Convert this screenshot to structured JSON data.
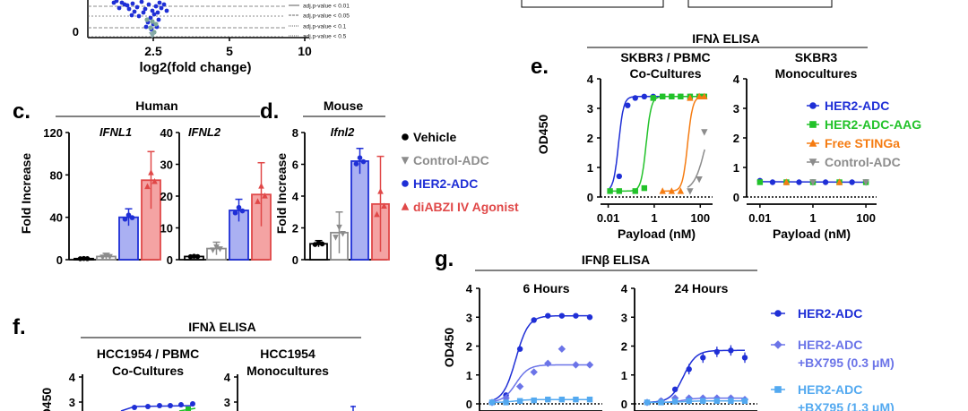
{
  "colors": {
    "blue": "#1f2fd6",
    "green": "#22c22a",
    "orange": "#f57c12",
    "gray": "#8c8c8c",
    "red": "#e04848",
    "black": "#000000",
    "midblue": "#6b74e8",
    "lightblue": "#53a9f0",
    "lightbar_red": "#f4a3a3",
    "lightbar_blue": "#aab0f2"
  },
  "volcano": {
    "xlabel": "log2(fold change)",
    "xticks": [
      "2.5",
      "5",
      "10"
    ],
    "ytick": "0",
    "legend": [
      "adj.p-value < 0.01",
      "adj.p-value < 0.05",
      "adj.p-value < 0.1",
      "adj.p-value < 0.5"
    ]
  },
  "panels": {
    "c": "c.",
    "d": "d.",
    "e": "e.",
    "f": "f.",
    "g": "g."
  },
  "chart_data": [
    {
      "id": "c-human",
      "type": "bar",
      "group_title": "Human",
      "ylabel": "Fold Increase",
      "subplots": [
        {
          "title": "IFNL1",
          "ylim": [
            0,
            120
          ],
          "yticks": [
            "0",
            "40",
            "80",
            "120"
          ],
          "categories": [
            "Vehicle",
            "Control-ADC",
            "HER2-ADC",
            "diABZI IV Agonist"
          ],
          "values": [
            1,
            3,
            40,
            75
          ],
          "errors": [
            0.5,
            3,
            8,
            27
          ]
        },
        {
          "title": "IFNL2",
          "ylim": [
            0,
            40
          ],
          "yticks": [
            "0",
            "10",
            "20",
            "30",
            "40"
          ],
          "categories": [
            "Vehicle",
            "Control-ADC",
            "HER2-ADC",
            "diABZI IV Agonist"
          ],
          "values": [
            1,
            3.5,
            15.5,
            20.5
          ],
          "errors": [
            0.3,
            2,
            3.5,
            10
          ]
        }
      ]
    },
    {
      "id": "d-mouse",
      "type": "bar",
      "group_title": "Mouse",
      "ylabel": "Fold Increase",
      "subplots": [
        {
          "title": "Ifnl2",
          "ylim": [
            0,
            8
          ],
          "yticks": [
            "0",
            "2",
            "4",
            "6",
            "8"
          ],
          "categories": [
            "Vehicle",
            "Control-ADC",
            "HER2-ADC",
            "diABZI IV Agonist"
          ],
          "values": [
            1,
            1.7,
            6.2,
            3.5
          ],
          "errors": [
            0.2,
            1.3,
            0.8,
            3
          ]
        }
      ],
      "legend": [
        {
          "label": "Vehicle",
          "marker": "circle",
          "color": "#000000"
        },
        {
          "label": "Control-ADC",
          "marker": "triangle-down",
          "color": "#8c8c8c"
        },
        {
          "label": "HER2-ADC",
          "marker": "circle",
          "color": "#1f2fd6"
        },
        {
          "label": "diABZI IV Agonist",
          "marker": "triangle-up",
          "color": "#e04848"
        }
      ]
    },
    {
      "id": "e-ifnl-elisa",
      "type": "line",
      "group_title": "IFNλ ELISA",
      "ylabel": "OD450",
      "xlabel": "Payload (nM)",
      "xscale": "log",
      "xticks": [
        "0.01",
        "1",
        "100"
      ],
      "ylim": [
        0,
        4
      ],
      "yticks": [
        "0",
        "1",
        "2",
        "3",
        "4"
      ],
      "subplots": [
        {
          "title": [
            "SKBR3 / PBMC",
            "Co-Cultures"
          ],
          "series": [
            {
              "name": "HER2-ADC",
              "x": [
                0.012,
                0.03,
                0.07,
                0.15,
                0.37,
                0.9,
                2.3,
                5.7,
                14,
                36,
                90,
                150
              ],
              "y": [
                0.2,
                0.7,
                3.1,
                3.35,
                3.4,
                3.4,
                3.4,
                3.4,
                3.4,
                3.4,
                3.4,
                3.4
              ]
            },
            {
              "name": "HER2-ADC-AAG",
              "x": [
                0.012,
                0.03,
                0.15,
                0.37,
                0.9,
                2.3,
                5.7,
                14,
                36,
                90,
                150
              ],
              "y": [
                0.2,
                0.2,
                0.2,
                0.3,
                3.35,
                3.4,
                3.4,
                3.4,
                3.4,
                3.4,
                3.4
              ]
            },
            {
              "name": "Free STINGa",
              "x": [
                2.3,
                5.7,
                14,
                36,
                90,
                150
              ],
              "y": [
                0.2,
                0.2,
                0.2,
                3.35,
                3.4,
                3.4
              ]
            },
            {
              "name": "Control-ADC",
              "x": [
                36,
                90,
                150
              ],
              "y": [
                0.2,
                0.6,
                2.2
              ]
            }
          ]
        },
        {
          "title": [
            "SKBR3",
            "Monocultures"
          ],
          "series": [
            {
              "name": "HER2-ADC",
              "x": [
                0.01,
                0.03,
                0.1,
                0.3,
                1,
                3,
                10,
                30,
                100
              ],
              "y": [
                0.55,
                0.5,
                0.5,
                0.5,
                0.5,
                0.5,
                0.5,
                0.5,
                0.5
              ]
            },
            {
              "name": "HER2-ADC-AAG",
              "x": [
                0.01,
                0.1,
                1,
                10,
                100
              ],
              "y": [
                0.5,
                0.5,
                0.5,
                0.5,
                0.5
              ]
            },
            {
              "name": "Free STINGa",
              "x": [
                0.1,
                10
              ],
              "y": [
                0.5,
                0.5
              ]
            },
            {
              "name": "Control-ADC",
              "x": [
                1,
                100
              ],
              "y": [
                0.5,
                0.5
              ]
            }
          ]
        }
      ],
      "legend": [
        {
          "label": "HER2-ADC",
          "marker": "circle",
          "color": "#1f2fd6"
        },
        {
          "label": "HER2-ADC-AAG",
          "marker": "square",
          "color": "#22c22a"
        },
        {
          "label": "Free STINGa",
          "marker": "triangle-up",
          "color": "#f57c12"
        },
        {
          "label": "Control-ADC",
          "marker": "triangle-down",
          "color": "#8c8c8c"
        }
      ]
    },
    {
      "id": "f-hcc1954",
      "type": "line",
      "group_title": "IFNλ ELISA",
      "ylabel": "OD450",
      "ylim": [
        0,
        4
      ],
      "yticks": [
        "3",
        "4"
      ],
      "subplots": [
        {
          "title": [
            "HCC1954 / PBMC",
            "Co-Cultures"
          ]
        },
        {
          "title": [
            "HCC1954",
            "Monocultures"
          ]
        }
      ]
    },
    {
      "id": "g-ifnb-elisa",
      "type": "line",
      "group_title": "IFNβ ELISA",
      "ylabel": "OD450",
      "ylim": [
        0,
        4
      ],
      "yticks": [
        "0",
        "1",
        "2",
        "3",
        "4"
      ],
      "subplots": [
        {
          "title": "6 Hours",
          "series": [
            {
              "name": "HER2-ADC",
              "x": [
                1,
                2,
                3,
                4,
                5,
                6,
                7,
                8
              ],
              "y": [
                0.05,
                0.3,
                1.9,
                2.9,
                3.05,
                3.05,
                3.05,
                3.0
              ]
            },
            {
              "name": "HER2-ADC +BX795 (0.3 μM)",
              "x": [
                1,
                2,
                3,
                4,
                5,
                6,
                7,
                8
              ],
              "y": [
                0.05,
                0.2,
                0.6,
                1.1,
                1.4,
                1.9,
                1.35,
                1.35
              ]
            },
            {
              "name": "HER2-ADC +BX795 (1.3 μM)",
              "x": [
                1,
                2,
                3,
                4,
                5,
                6,
                7,
                8
              ],
              "y": [
                0.05,
                0.05,
                0.1,
                0.12,
                0.15,
                0.15,
                0.15,
                0.15
              ]
            }
          ]
        },
        {
          "title": "24 Hours",
          "series": [
            {
              "name": "HER2-ADC",
              "x": [
                1,
                2,
                3,
                4,
                5,
                6,
                7,
                8
              ],
              "y": [
                0.05,
                0.1,
                0.5,
                1.2,
                1.6,
                1.8,
                1.85,
                1.6
              ]
            },
            {
              "name": "HER2-ADC +BX795 (0.3 μM)",
              "x": [
                1,
                2,
                3,
                4,
                5,
                6,
                7,
                8
              ],
              "y": [
                0.05,
                0.1,
                0.2,
                0.2,
                0.2,
                0.2,
                0.2,
                0.15
              ]
            },
            {
              "name": "HER2-ADC +BX795 (1.3 μM)",
              "x": [
                1,
                2,
                3,
                4,
                5,
                6,
                7,
                8
              ],
              "y": [
                0.05,
                0.05,
                0.08,
                0.1,
                0.1,
                0.1,
                0.1,
                0.1
              ]
            }
          ]
        }
      ],
      "legend": [
        {
          "label": [
            "HER2-ADC"
          ],
          "marker": "circle",
          "color": "#1f2fd6"
        },
        {
          "label": [
            "HER2-ADC",
            "+BX795 (0.3 μM)"
          ],
          "marker": "diamond",
          "color": "#6b74e8"
        },
        {
          "label": [
            "HER2-ADC",
            "+BX795 (1.3 μM)"
          ],
          "marker": "square",
          "color": "#53a9f0"
        }
      ]
    }
  ]
}
